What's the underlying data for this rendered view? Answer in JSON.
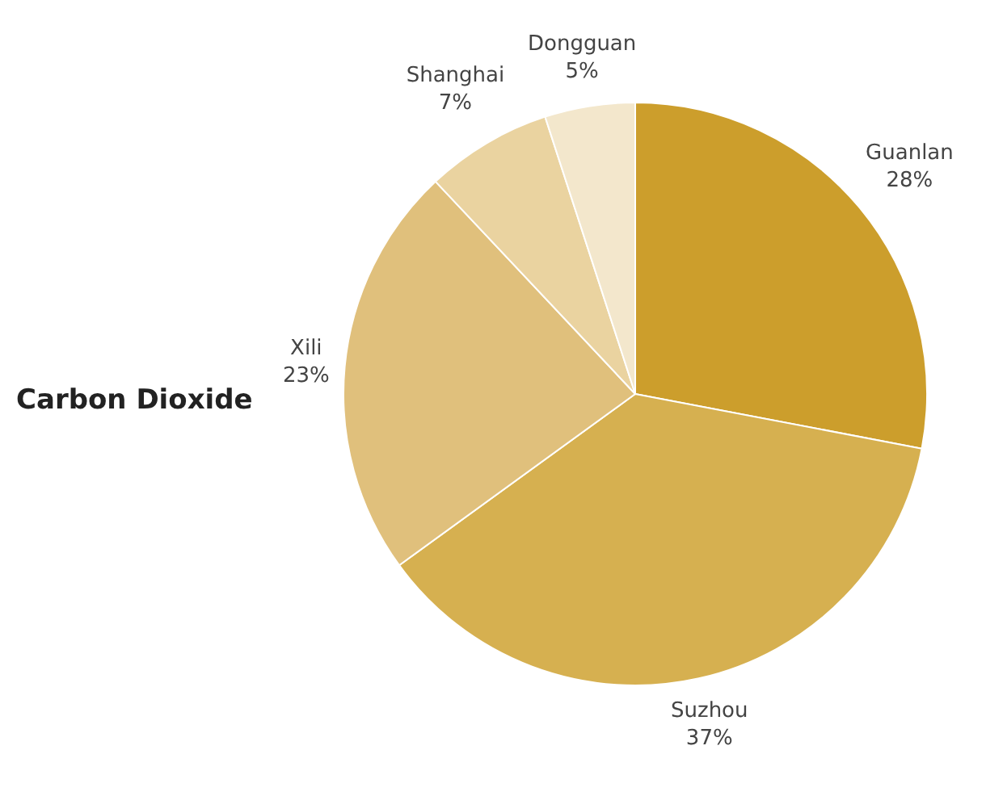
{
  "chart_data": {
    "type": "pie",
    "title": "Carbon Dioxide",
    "categories": [
      "Guanlan",
      "Suzhou",
      "Xili",
      "Shanghai",
      "Dongguan"
    ],
    "values": [
      28,
      37,
      23,
      7,
      5
    ],
    "value_labels": [
      "28%",
      "37%",
      "23%",
      "7%",
      "5%"
    ],
    "colors": [
      "#cc9e2c",
      "#d6b050",
      "#e0c07c",
      "#ead3a0",
      "#f3e7cc"
    ],
    "legend": false
  }
}
